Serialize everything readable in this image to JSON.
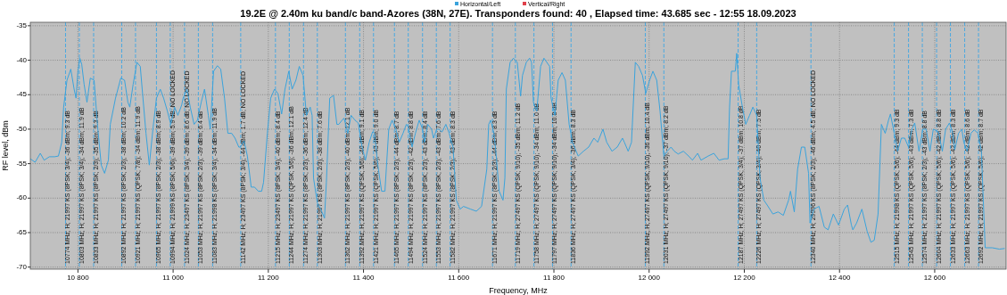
{
  "chart_data": {
    "type": "line",
    "title": "19.2E @ 2.40m ku band/c band-Azores (38N, 27E). Transponders found: 40 , Elapsed time: 43.685 sec - 12:55 18.09.2023",
    "xlabel": "Frequency, MHz",
    "ylabel": "RF level, dBm",
    "xlim": [
      10700,
      12750
    ],
    "ylim": [
      -70.3,
      -34.5
    ],
    "xticks": [
      {
        "value": 10800,
        "label": "10 800"
      },
      {
        "value": 11000,
        "label": "11 000"
      },
      {
        "value": 11200,
        "label": "11 200"
      },
      {
        "value": 11400,
        "label": "11 400"
      },
      {
        "value": 11600,
        "label": "11 600"
      },
      {
        "value": 11800,
        "label": "11 800"
      },
      {
        "value": 12000,
        "label": "12 000"
      },
      {
        "value": 12200,
        "label": "12 200"
      },
      {
        "value": 12400,
        "label": "12 400"
      },
      {
        "value": 12600,
        "label": "12 600"
      }
    ],
    "yticks": [
      -35,
      -40,
      -45,
      -50,
      -55,
      -60,
      -65,
      -70
    ],
    "grid": true,
    "legend": "top",
    "marker": "none",
    "line_style": "solid",
    "series": [
      {
        "name": "Horizontal/Left",
        "color": "#3aa3dc",
        "x": [
          10700,
          10710,
          10721,
          10729,
          10740,
          10751,
          10759,
          10766,
          10770,
          10777,
          10785,
          10792,
          10796,
          10800,
          10804,
          10808,
          10813,
          10819,
          10826,
          10834,
          10841,
          10849,
          10856,
          10864,
          10868,
          10879,
          10890,
          10898,
          10905,
          10909,
          10916,
          10924,
          10931,
          10935,
          10943,
          10950,
          10958,
          10965,
          10973,
          10980,
          10988,
          10995,
          11003,
          11010,
          11018,
          11021,
          11029,
          11036,
          11044,
          11051,
          11059,
          11066,
          11074,
          11078,
          11085,
          11093,
          11100,
          11108,
          11115,
          11123,
          11130,
          11138,
          11141,
          11149,
          11156,
          11164,
          11171,
          11179,
          11186,
          11190,
          11198,
          11205,
          11213,
          11220,
          11228,
          11235,
          11243,
          11250,
          11258,
          11265,
          11273,
          11280,
          11288,
          11292,
          11295,
          11303,
          11310,
          11318,
          11322,
          11329,
          11337,
          11344,
          11348,
          11355,
          11359,
          11367,
          11374,
          11382,
          11389,
          11397,
          11404,
          11412,
          11419,
          11423,
          11430,
          11438,
          11445,
          11453,
          11460,
          11468,
          11475,
          11483,
          11490,
          11494,
          11502,
          11509,
          11517,
          11524,
          11528,
          11535,
          11543,
          11547,
          11554,
          11558,
          11565,
          11573,
          11580,
          11588,
          11595,
          11603,
          11610,
          11625,
          11637,
          11648,
          11659,
          11663,
          11667,
          11674,
          11678,
          11685,
          11693,
          11697,
          11700,
          11708,
          11715,
          11723,
          11730,
          11734,
          11742,
          11749,
          11753,
          11757,
          11764,
          11772,
          11779,
          11791,
          11794,
          11802,
          11809,
          11817,
          11824,
          11832,
          11839,
          11851,
          11862,
          11873,
          11884,
          11892,
          11903,
          11911,
          11922,
          11933,
          11944,
          11948,
          11956,
          11963,
          11971,
          11978,
          11986,
          11993,
          12001,
          12008,
          12016,
          12023,
          12031,
          12038,
          12046,
          12053,
          12061,
          12072,
          12083,
          12091,
          12102,
          12109,
          12124,
          12136,
          12147,
          12158,
          12166,
          12169,
          12173,
          12181,
          12184,
          12188,
          12196,
          12203,
          12211,
          12218,
          12226,
          12233,
          12241,
          12248,
          12260,
          12271,
          12282,
          12293,
          12297,
          12305,
          12312,
          12320,
          12327,
          12335,
          12338,
          12346,
          12357,
          12368,
          12376,
          12387,
          12398,
          12410,
          12417,
          12425,
          12428,
          12436,
          12447,
          12458,
          12466,
          12473,
          12481,
          12488,
          12496,
          12503,
          12507,
          12515,
          12522,
          12530,
          12537,
          12545,
          12552,
          12558,
          12567,
          12575,
          12582,
          12590,
          12597,
          12608,
          12616,
          12623,
          12631,
          12638,
          12642,
          12650,
          12657,
          12661,
          12668,
          12676,
          12683,
          12691,
          12698,
          12706,
          12721,
          12736,
          12747
        ],
        "values": [
          -54.3,
          -54.8,
          -53.5,
          -54.5,
          -54.0,
          -54.0,
          -53.9,
          -51.9,
          -46.8,
          -42.9,
          -41.3,
          -44.2,
          -45.5,
          -41.6,
          -39.7,
          -40.6,
          -43.5,
          -46.1,
          -42.6,
          -42.9,
          -49.3,
          -55.2,
          -56.4,
          -54.5,
          -49.3,
          -45.5,
          -42.6,
          -42.9,
          -46.1,
          -46.8,
          -43.5,
          -40.3,
          -40.9,
          -44.2,
          -50.6,
          -55.2,
          -49.7,
          -45.5,
          -44.2,
          -45.5,
          -47.4,
          -49.3,
          -46.8,
          -48.0,
          -46.5,
          -45.5,
          -44.2,
          -46.8,
          -49.3,
          -48.7,
          -46.1,
          -44.2,
          -48.0,
          -50.0,
          -41.6,
          -40.8,
          -41.3,
          -45.5,
          -50.6,
          -50.6,
          -51.3,
          -52.6,
          -52.6,
          -51.7,
          -53.9,
          -58.4,
          -58.4,
          -59.0,
          -59.0,
          -57.7,
          -50.6,
          -45.5,
          -44.2,
          -44.8,
          -47.8,
          -44.2,
          -41.6,
          -44.2,
          -42.9,
          -40.9,
          -42.2,
          -48.0,
          -46.8,
          -48.0,
          -57.1,
          -60.7,
          -61.6,
          -62.9,
          -57.7,
          -45.5,
          -45.1,
          -49.3,
          -49.3,
          -48.7,
          -48.4,
          -50.6,
          -48.0,
          -48.7,
          -49.1,
          -52.6,
          -54.5,
          -51.9,
          -50.4,
          -50.6,
          -55.2,
          -59.0,
          -59.0,
          -50.0,
          -48.7,
          -50.0,
          -51.9,
          -50.6,
          -49.3,
          -49.7,
          -52.6,
          -50.6,
          -48.7,
          -50.0,
          -51.9,
          -49.3,
          -50.0,
          -51.3,
          -50.0,
          -50.0,
          -50.4,
          -49.3,
          -50.6,
          -52.6,
          -60.3,
          -61.6,
          -61.2,
          -61.6,
          -61.9,
          -61.2,
          -55.8,
          -49.3,
          -48.7,
          -50.6,
          -53.2,
          -59.0,
          -60.3,
          -57.1,
          -44.2,
          -40.3,
          -39.7,
          -40.3,
          -45.2,
          -42.2,
          -40.3,
          -39.7,
          -40.3,
          -46.1,
          -47.4,
          -40.9,
          -39.7,
          -40.9,
          -45.5,
          -48.0,
          -42.9,
          -41.8,
          -42.9,
          -49.3,
          -51.9,
          -53.9,
          -53.2,
          -52.6,
          -51.3,
          -51.9,
          -50.0,
          -51.9,
          -53.2,
          -52.6,
          -51.3,
          -51.9,
          -53.2,
          -51.9,
          -40.3,
          -40.9,
          -42.2,
          -44.8,
          -42.9,
          -41.6,
          -42.9,
          -47.4,
          -53.9,
          -53.2,
          -52.6,
          -53.2,
          -53.6,
          -53.2,
          -53.9,
          -54.5,
          -53.5,
          -54.5,
          -53.9,
          -53.5,
          -54.5,
          -54.3,
          -54.3,
          -46.8,
          -41.6,
          -41.6,
          -39.0,
          -43.5,
          -46.8,
          -49.3,
          -48.0,
          -46.8,
          -48.0,
          -57.1,
          -60.3,
          -61.0,
          -62.3,
          -62.0,
          -62.5,
          -60.3,
          -59.0,
          -62.0,
          -55.8,
          -52.6,
          -52.6,
          -56.4,
          -63.6,
          -61.6,
          -61.2,
          -64.2,
          -64.6,
          -62.3,
          -63.9,
          -61.6,
          -61.0,
          -63.9,
          -64.6,
          -63.6,
          -61.6,
          -64.8,
          -66.4,
          -66.1,
          -62.3,
          -49.3,
          -50.6,
          -48.7,
          -47.8,
          -50.6,
          -53.2,
          -51.3,
          -51.3,
          -52.6,
          -50.0,
          -49.1,
          -53.2,
          -50.0,
          -50.0,
          -53.2,
          -50.0,
          -50.4,
          -53.2,
          -50.0,
          -49.1,
          -50.6,
          -53.0,
          -50.6,
          -50.0,
          -51.9,
          -53.2,
          -50.6,
          -50.1,
          -50.6,
          -53.2,
          -67.2,
          -67.2,
          -67.4,
          -67.3
        ]
      },
      {
        "name": "Vertical/Right",
        "color": "#e0404a"
      }
    ],
    "ref_lines": [
      {
        "axis": "x",
        "value": 10774,
        "label": "10774 MHz; H; 21997 KS (8PSK; 3/4); -36 dBm; 9.3 dB",
        "color": "#4aa8e0",
        "line_style": "dashed"
      },
      {
        "axis": "x",
        "value": 10803,
        "label": "10803 MHz; H; 21997 KS (8PSK; 3/4); -34 dBm; 11.9 dB",
        "color": "#4aa8e0",
        "line_style": "dashed"
      },
      {
        "axis": "x",
        "value": 10833,
        "label": "10833 MHz; H; 21997 KS (8PSK; 2/3); -35 dBm; 9.3 dB",
        "color": "#4aa8e0",
        "line_style": "dashed"
      },
      {
        "axis": "x",
        "value": 10892,
        "label": "10892 MHz; H; 21997 KS (8PSK; 2/3); -38 dBm; 10.2 dB",
        "color": "#4aa8e0",
        "line_style": "dashed"
      },
      {
        "axis": "x",
        "value": 10921,
        "label": "10921 MHz; H; 21997 KS (QPSK; 7/8); -34 dBm; 11.9 dB",
        "color": "#4aa8e0",
        "line_style": "dashed"
      },
      {
        "axis": "x",
        "value": 10965,
        "label": "10965 MHz; H; 21997 KS (8PSK; 2/3); -38 dBm; 8.9 dB",
        "color": "#4aa8e0",
        "line_style": "dashed"
      },
      {
        "axis": "x",
        "value": 10994,
        "label": "10994 MHz; H; 21999 KS (8PSK; 5/6); -39 dBm; 5.9 dB; NO LOCKED",
        "color": "#4aa8e0",
        "line_style": "dashed"
      },
      {
        "axis": "x",
        "value": 11024,
        "label": "11024 MHz; H; 23497 KS (8PSK; 3/4); -39 dBm; 8.6 dB; NO LOCKED",
        "color": "#4aa8e0",
        "line_style": "dashed"
      },
      {
        "axis": "x",
        "value": 11053,
        "label": "11053 MHz; H; 21997 KS (8PSK; 2/3); -39 dBm; 6.4 dB",
        "color": "#4aa8e0",
        "line_style": "dashed"
      },
      {
        "axis": "x",
        "value": 11083,
        "label": "11083 MHz; H; 21998 KS (8PSK; 3/4); -34 dBm; 11.9 dB",
        "color": "#4aa8e0",
        "line_style": "dashed"
      },
      {
        "axis": "x",
        "value": 11142,
        "label": "11142 MHz; H; 23497 KS (8PSK; 3/4); -44 dBm; 1.7 dB; NO LOCKED",
        "color": "#4aa8e0",
        "line_style": "dashed"
      },
      {
        "axis": "x",
        "value": 11215,
        "label": "11215 MHz; H; 23497 KS (8PSK; 3/4); -40 dBm; 8.4 dB",
        "color": "#4aa8e0",
        "line_style": "dashed"
      },
      {
        "axis": "x",
        "value": 11244,
        "label": "11244 MHz; H; 21997 KS (QPSK; 5/6); -36 dBm; 12.1 dB",
        "color": "#4aa8e0",
        "line_style": "dashed"
      },
      {
        "axis": "x",
        "value": 11274,
        "label": "11274 MHz; H; 21997 KS (8PSK; 2/3); -36 dBm; 12.4 dB",
        "color": "#4aa8e0",
        "line_style": "dashed"
      },
      {
        "axis": "x",
        "value": 11303,
        "label": "11303 MHz; H; 21997 KS (8PSK; 2/3); -38 dBm; 7.6 dB",
        "color": "#4aa8e0",
        "line_style": "dashed"
      },
      {
        "axis": "x",
        "value": 11362,
        "label": "11362 MHz; H; 21997 KS (8PSK; 2/3); -40 dBm; 12.1 dB",
        "color": "#4aa8e0",
        "line_style": "dashed"
      },
      {
        "axis": "x",
        "value": 11392,
        "label": "11392 MHz; H; 21997 KS (QPSK; 5/6); -40 dBm; 9.1 dB",
        "color": "#4aa8e0",
        "line_style": "dashed"
      },
      {
        "axis": "x",
        "value": 11421,
        "label": "11421 MHz; H; 21997 KS (QPSK; 5/6); -43 dBm; 9.0 dB",
        "color": "#4aa8e0",
        "line_style": "dashed"
      },
      {
        "axis": "x",
        "value": 11465,
        "label": "11465 MHz; H; 21997 KS (8PSK; 2/3); -44 dBm; 8.7 dB",
        "color": "#4aa8e0",
        "line_style": "dashed"
      },
      {
        "axis": "x",
        "value": 11494,
        "label": "11494 MHz; H; 21997 KS (8PSK; 2/3); -42 dBm; 8.8 dB",
        "color": "#4aa8e0",
        "line_style": "dashed"
      },
      {
        "axis": "x",
        "value": 11524,
        "label": "11524 MHz; H; 21997 KS (8PSK; 2/3); -43 dBm; 8.4 dB",
        "color": "#4aa8e0",
        "line_style": "dashed"
      },
      {
        "axis": "x",
        "value": 11553,
        "label": "11553 MHz; H; 21997 KS (8PSK; 2/3); -43 dBm; 7.6 dB",
        "color": "#4aa8e0",
        "line_style": "dashed"
      },
      {
        "axis": "x",
        "value": 11582,
        "label": "11582 MHz; H; 21997 KS (8PSK; 2/3); -43 dBm; 8.3 dB",
        "color": "#4aa8e0",
        "line_style": "dashed"
      },
      {
        "axis": "x",
        "value": 11671,
        "label": "11671 MHz; H; 21997 KS (8PSK; 2/3); -44 dBm; 8.3 dB",
        "color": "#4aa8e0",
        "line_style": "dashed"
      },
      {
        "axis": "x",
        "value": 11719,
        "label": "11719 MHz; H; 27497 KS (QPSK; 9/10); -35 dBm; 11.2 dB",
        "color": "#4aa8e0",
        "line_style": "dashed"
      },
      {
        "axis": "x",
        "value": 11758,
        "label": "11758 MHz; H; 27497 KS (QPSK; 9/10); -34 dBm; 11.0 dB",
        "color": "#4aa8e0",
        "line_style": "dashed"
      },
      {
        "axis": "x",
        "value": 11797,
        "label": "11797 MHz; H; 27497 KS (QPSK; 9/10); -34 dBm; 10.8 dB",
        "color": "#4aa8e0",
        "line_style": "dashed"
      },
      {
        "axis": "x",
        "value": 11836,
        "label": "11836 MHz; H; 27497 KS (QPSK; 3/4); -36 dBm; 8.3 dB",
        "color": "#4aa8e0",
        "line_style": "dashed"
      },
      {
        "axis": "x",
        "value": 11992,
        "label": "11992 MHz; H; 27497 KS (QPSK; 9/10); -36 dBm; 10.4 dB",
        "color": "#4aa8e0",
        "line_style": "dashed"
      },
      {
        "axis": "x",
        "value": 12031,
        "label": "12031 MHz; H; 27497 KS (QPSK; 9/10); -37 dBm; 8.2 dB",
        "color": "#4aa8e0",
        "line_style": "dashed"
      },
      {
        "axis": "x",
        "value": 12187,
        "label": "12187 MHz; H; 27497 KS (QPSK; 3/4); -37 dBm; 10.8 dB",
        "color": "#4aa8e0",
        "line_style": "dashed"
      },
      {
        "axis": "x",
        "value": 12226,
        "label": "12226 MHz; H; 27497 KS (QPSK; 3/4); -40 dBm; 7.5 dB",
        "color": "#4aa8e0",
        "line_style": "dashed"
      },
      {
        "axis": "x",
        "value": 12340,
        "label": "12340 MHz; H; 29996 KS (8PSK; 2/3); -46 dBm; 4.5 dB; NO LOCKED",
        "color": "#4aa8e0",
        "line_style": "dashed"
      },
      {
        "axis": "x",
        "value": 12515,
        "label": "12515 MHz; H; 21998 KS (QPSK; 5/6); -44 dBm; 9.3 dB",
        "color": "#4aa8e0",
        "line_style": "dashed"
      },
      {
        "axis": "x",
        "value": 12545,
        "label": "12545 MHz; H; 21997 KS (QPSK; 5/6); -43 dBm; 7.3 dB",
        "color": "#4aa8e0",
        "line_style": "dashed"
      },
      {
        "axis": "x",
        "value": 12574,
        "label": "12574 MHz; H; 21997 KS (8PSK; 2/3); -43 dBm; 8.8 dB",
        "color": "#4aa8e0",
        "line_style": "dashed"
      },
      {
        "axis": "x",
        "value": 12604,
        "label": "12604 MHz; H; 21997 KS (QPSK; 5/6); -42 dBm; 8.8 dB",
        "color": "#4aa8e0",
        "line_style": "dashed"
      },
      {
        "axis": "x",
        "value": 12633,
        "label": "12633 MHz; H; 21997 KS (QPSK; 5/6); -42 dBm; 8.3 dB",
        "color": "#4aa8e0",
        "line_style": "dashed"
      },
      {
        "axis": "x",
        "value": 12663,
        "label": "12663 MHz; H; 21997 KS (QPSK; 5/6); -42 dBm; 8.6 dB",
        "color": "#4aa8e0",
        "line_style": "dashed"
      },
      {
        "axis": "x",
        "value": 12692,
        "label": "12692 MHz; H; 21997 KS (QPSK; 5/6); -42 dBm; 8.7 dB",
        "color": "#4aa8e0",
        "line_style": "dashed"
      }
    ]
  }
}
